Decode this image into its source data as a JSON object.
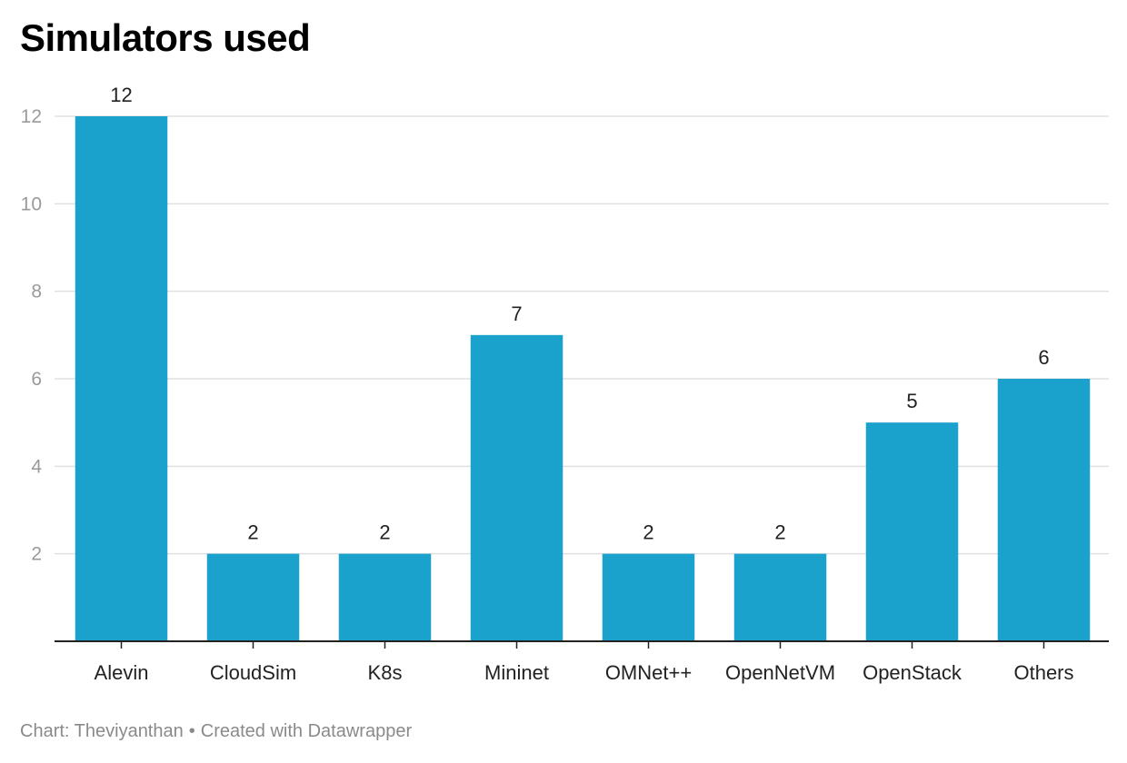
{
  "title": "Simulators used",
  "footer": {
    "source": "Chart: Theviyanthan",
    "separator": "•",
    "credit": "Created with Datawrapper"
  },
  "colors": {
    "bar": "#1aa1cc",
    "grid": "#e0e0e0",
    "axis": "#222222",
    "tick_label": "#9a9a9a",
    "category_label": "#222222",
    "value_label": "#222222"
  },
  "chart_data": {
    "type": "bar",
    "categories": [
      "Alevin",
      "CloudSim",
      "K8s",
      "Mininet",
      "OMNet++",
      "OpenNetVM",
      "OpenStack",
      "Others"
    ],
    "values": [
      12,
      2,
      2,
      7,
      2,
      2,
      5,
      6
    ],
    "title": "Simulators used",
    "xlabel": "",
    "ylabel": "",
    "ylim": [
      0,
      12
    ],
    "yticks": [
      2,
      4,
      6,
      8,
      10,
      12
    ],
    "grid": true,
    "data_labels": true
  }
}
